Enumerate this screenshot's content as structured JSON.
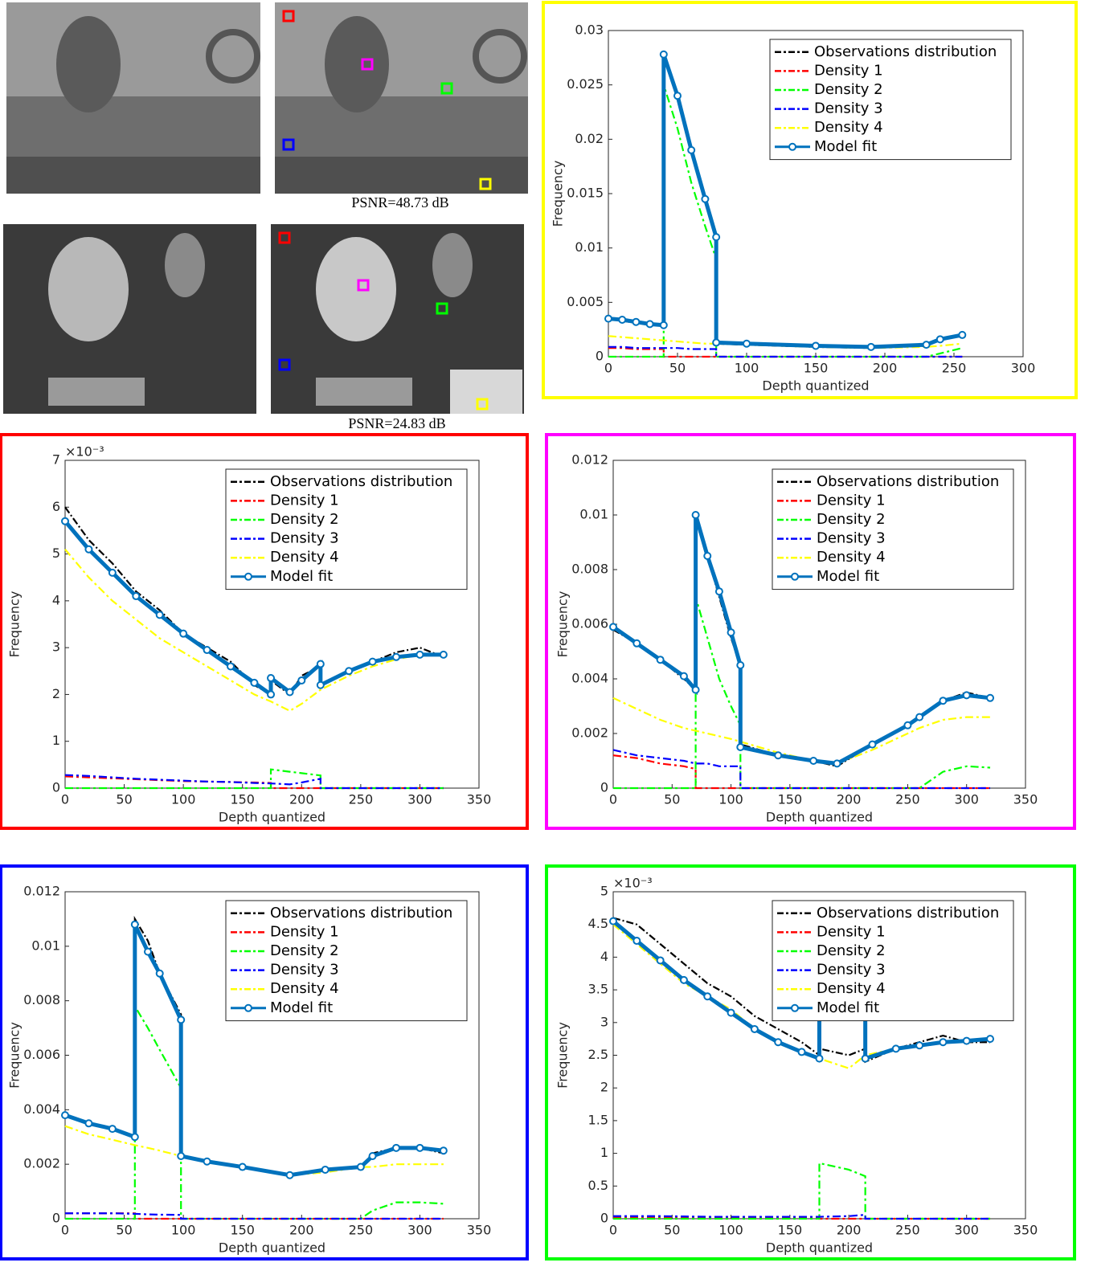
{
  "image_captions": [
    "PSNR=48.73 dB",
    "PSNR=24.83 dB"
  ],
  "chart_data": [
    {
      "type": "line",
      "frame_color": "#ffff00",
      "xlabel": "Depth quantized",
      "ylabel": "Frequency",
      "xlim": [
        0,
        300
      ],
      "xticks": [
        0,
        50,
        100,
        150,
        200,
        250,
        300
      ],
      "ylim": [
        0,
        0.03
      ],
      "yticks": [
        0,
        0.005,
        0.01,
        0.015,
        0.02,
        0.025,
        0.03
      ],
      "x": [
        0,
        10,
        20,
        30,
        40,
        40,
        50,
        60,
        70,
        78,
        78,
        100,
        150,
        190,
        230,
        240,
        256
      ],
      "series": [
        {
          "name": "Observations distribution",
          "color": "#000000",
          "values": [
            0.0035,
            0.0033,
            0.0031,
            0.003,
            0.0029,
            0.028,
            0.024,
            0.019,
            0.0145,
            0.011,
            0.0012,
            0.0011,
            0.0009,
            0.0008,
            0.001,
            0.0016,
            0.002
          ]
        },
        {
          "name": "Density 1",
          "color": "#ff0000",
          "values": [
            0.0008,
            0.0008,
            0.0007,
            0.0007,
            0.0007,
            0,
            0,
            0,
            0,
            0,
            0,
            0,
            0,
            0,
            0,
            0,
            0
          ]
        },
        {
          "name": "Density 2",
          "color": "#00ff00",
          "values": [
            0,
            0,
            0,
            0,
            0,
            0.025,
            0.021,
            0.016,
            0.012,
            0.009,
            0,
            0,
            0,
            0,
            0,
            0.0003,
            0.0008
          ]
        },
        {
          "name": "Density 3",
          "color": "#0000ff",
          "values": [
            0.0009,
            0.0009,
            0.0008,
            0.0008,
            0.0008,
            0.0008,
            0.0008,
            0.0007,
            0.0007,
            0.0007,
            0,
            0,
            0,
            0,
            0,
            0,
            0
          ]
        },
        {
          "name": "Density 4",
          "color": "#ffff00",
          "values": [
            0.0019,
            0.0018,
            0.0017,
            0.0016,
            0.0015,
            0.0015,
            0.0014,
            0.0013,
            0.0012,
            0.0012,
            0.0012,
            0.0011,
            0.0009,
            0.0008,
            0.0009,
            0.001,
            0.0012
          ]
        },
        {
          "name": "Model fit",
          "color": "#0072bd",
          "values": [
            0.0035,
            0.0034,
            0.0032,
            0.003,
            0.0029,
            0.0278,
            0.024,
            0.019,
            0.0145,
            0.011,
            0.0013,
            0.0012,
            0.001,
            0.0009,
            0.0011,
            0.0016,
            0.002
          ]
        }
      ]
    },
    {
      "type": "line",
      "frame_color": "#ff0000",
      "xlabel": "Depth quantized",
      "ylabel": "Frequency",
      "y_exponent_label": "×10⁻³",
      "xlim": [
        0,
        350
      ],
      "xticks": [
        0,
        50,
        100,
        150,
        200,
        250,
        300,
        350
      ],
      "ylim": [
        0,
        7
      ],
      "yticks": [
        0,
        1,
        2,
        3,
        4,
        5,
        6,
        7
      ],
      "x": [
        0,
        20,
        40,
        60,
        80,
        100,
        120,
        140,
        160,
        174,
        174,
        190,
        200,
        216,
        216,
        240,
        260,
        280,
        300,
        320
      ],
      "series": [
        {
          "name": "Observations distribution",
          "color": "#000000",
          "values": [
            6,
            5.3,
            4.8,
            4.2,
            3.8,
            3.3,
            3,
            2.7,
            2.2,
            2,
            2.3,
            2,
            2.4,
            2.6,
            2.2,
            2.5,
            2.7,
            2.9,
            3,
            2.8
          ]
        },
        {
          "name": "Density 1",
          "color": "#ff0000",
          "values": [
            0.25,
            0.23,
            0.21,
            0.19,
            0.17,
            0.15,
            0.14,
            0.13,
            0.12,
            0.11,
            0,
            0,
            0,
            0,
            0,
            0,
            0,
            0,
            0,
            0
          ]
        },
        {
          "name": "Density 2",
          "color": "#00ff00",
          "values": [
            0,
            0,
            0,
            0,
            0,
            0,
            0,
            0,
            0,
            0,
            0.4,
            0.35,
            0.32,
            0.27,
            0,
            0,
            0,
            0,
            0,
            0
          ]
        },
        {
          "name": "Density 3",
          "color": "#0000ff",
          "values": [
            0.28,
            0.26,
            0.23,
            0.2,
            0.18,
            0.16,
            0.14,
            0.13,
            0.11,
            0.1,
            0.1,
            0.08,
            0.12,
            0.2,
            0,
            0,
            0,
            0,
            0,
            0
          ]
        },
        {
          "name": "Density 4",
          "color": "#ffff00",
          "values": [
            5.1,
            4.5,
            4,
            3.6,
            3.2,
            2.9,
            2.6,
            2.3,
            2,
            1.85,
            1.85,
            1.65,
            1.8,
            2.1,
            2.1,
            2.4,
            2.6,
            2.75,
            2.85,
            2.85
          ]
        },
        {
          "name": "Model fit",
          "color": "#0072bd",
          "values": [
            5.7,
            5.1,
            4.6,
            4.1,
            3.7,
            3.3,
            2.95,
            2.6,
            2.25,
            2,
            2.35,
            2.05,
            2.3,
            2.65,
            2.2,
            2.5,
            2.7,
            2.8,
            2.85,
            2.85
          ]
        }
      ]
    },
    {
      "type": "line",
      "frame_color": "#ff00ff",
      "xlabel": "Depth quantized",
      "ylabel": "Frequency",
      "xlim": [
        0,
        350
      ],
      "xticks": [
        0,
        50,
        100,
        150,
        200,
        250,
        300,
        350
      ],
      "ylim": [
        0,
        0.012
      ],
      "yticks": [
        0,
        0.002,
        0.004,
        0.006,
        0.008,
        0.01,
        0.012
      ],
      "x": [
        0,
        20,
        40,
        60,
        70,
        70,
        80,
        90,
        100,
        108,
        108,
        140,
        170,
        190,
        220,
        250,
        260,
        280,
        300,
        320
      ],
      "series": [
        {
          "name": "Observations distribution",
          "color": "#000000",
          "values": [
            0.0058,
            0.0053,
            0.0047,
            0.004,
            0.0036,
            0.0098,
            0.0085,
            0.007,
            0.0055,
            0.0045,
            0.0016,
            0.0012,
            0.001,
            0.0008,
            0.0016,
            0.0023,
            0.0026,
            0.0032,
            0.0035,
            0.0033
          ]
        },
        {
          "name": "Density 1",
          "color": "#ff0000",
          "values": [
            0.0012,
            0.0011,
            0.0009,
            0.0008,
            0.0007,
            0,
            0,
            0,
            0,
            0,
            0,
            0,
            0,
            0,
            0,
            0,
            0,
            0,
            0,
            0
          ]
        },
        {
          "name": "Density 2",
          "color": "#00ff00",
          "values": [
            0,
            0,
            0,
            0,
            0,
            0.007,
            0.0055,
            0.004,
            0.003,
            0.0023,
            0,
            0,
            0,
            0,
            0,
            0,
            0,
            0.0006,
            0.0008,
            0.00075
          ]
        },
        {
          "name": "Density 3",
          "color": "#0000ff",
          "values": [
            0.0014,
            0.0012,
            0.0011,
            0.001,
            0.0009,
            0.0009,
            0.0009,
            0.0008,
            0.0008,
            0.0008,
            0,
            0,
            0,
            0,
            0,
            0,
            0,
            0,
            0,
            0
          ]
        },
        {
          "name": "Density 4",
          "color": "#ffff00",
          "values": [
            0.0033,
            0.0029,
            0.0025,
            0.0022,
            0.0021,
            0.0021,
            0.002,
            0.0019,
            0.0018,
            0.0017,
            0.0017,
            0.0013,
            0.001,
            0.0009,
            0.0014,
            0.002,
            0.0022,
            0.0025,
            0.0026,
            0.0026
          ]
        },
        {
          "name": "Model fit",
          "color": "#0072bd",
          "values": [
            0.0059,
            0.0053,
            0.0047,
            0.0041,
            0.0036,
            0.01,
            0.0085,
            0.0072,
            0.0057,
            0.0045,
            0.0015,
            0.0012,
            0.001,
            0.0009,
            0.0016,
            0.0023,
            0.0026,
            0.0032,
            0.0034,
            0.0033
          ]
        }
      ]
    },
    {
      "type": "line",
      "frame_color": "#0000ff",
      "xlabel": "Depth quantized",
      "ylabel": "Frequency",
      "xlim": [
        0,
        350
      ],
      "xticks": [
        0,
        50,
        100,
        150,
        200,
        250,
        300,
        350
      ],
      "ylim": [
        0,
        0.012
      ],
      "yticks": [
        0,
        0.002,
        0.004,
        0.006,
        0.008,
        0.01,
        0.012
      ],
      "x": [
        0,
        20,
        40,
        59,
        59,
        70,
        80,
        98,
        98,
        120,
        150,
        190,
        220,
        250,
        260,
        280,
        300,
        320
      ],
      "series": [
        {
          "name": "Observations distribution",
          "color": "#000000",
          "values": [
            0.0038,
            0.0035,
            0.0033,
            0.003,
            0.011,
            0.0102,
            0.009,
            0.0075,
            0.0023,
            0.0021,
            0.0019,
            0.0016,
            0.0018,
            0.0019,
            0.0024,
            0.0026,
            0.0026,
            0.0024
          ]
        },
        {
          "name": "Density 1",
          "color": "#ff0000",
          "values": [
            0.0002,
            0.0002,
            0.0002,
            0.0002,
            0,
            0,
            0,
            0,
            0,
            0,
            0,
            0,
            0,
            0,
            0,
            0,
            0,
            0
          ]
        },
        {
          "name": "Density 2",
          "color": "#00ff00",
          "values": [
            0,
            0,
            0,
            0,
            0.0078,
            0.007,
            0.0062,
            0.0048,
            0,
            0,
            0,
            0,
            0,
            0,
            0.0003,
            0.0006,
            0.0006,
            0.00055
          ]
        },
        {
          "name": "Density 3",
          "color": "#0000ff",
          "values": [
            0.0002,
            0.0002,
            0.0002,
            0.00018,
            0.00018,
            0.00016,
            0.00015,
            0.00014,
            0,
            0,
            0,
            0,
            0,
            0,
            0,
            0,
            0,
            0
          ]
        },
        {
          "name": "Density 4",
          "color": "#ffff00",
          "values": [
            0.0034,
            0.0031,
            0.0029,
            0.0027,
            0.0027,
            0.0026,
            0.0025,
            0.0023,
            0.0023,
            0.0021,
            0.0019,
            0.0016,
            0.0017,
            0.0019,
            0.0019,
            0.002,
            0.002,
            0.002
          ]
        },
        {
          "name": "Model fit",
          "color": "#0072bd",
          "values": [
            0.0038,
            0.0035,
            0.0033,
            0.003,
            0.0108,
            0.0098,
            0.009,
            0.0073,
            0.0023,
            0.0021,
            0.0019,
            0.0016,
            0.0018,
            0.0019,
            0.0023,
            0.0026,
            0.0026,
            0.0025
          ]
        }
      ]
    },
    {
      "type": "line",
      "frame_color": "#00ff00",
      "xlabel": "Depth quantized",
      "ylabel": "Frequency",
      "y_exponent_label": "×10⁻³",
      "xlim": [
        0,
        350
      ],
      "xticks": [
        0,
        50,
        100,
        150,
        200,
        250,
        300,
        350
      ],
      "ylim": [
        0,
        5
      ],
      "yticks": [
        0,
        0.5,
        1,
        1.5,
        2,
        2.5,
        3,
        3.5,
        4,
        4.5,
        5
      ],
      "x": [
        0,
        20,
        40,
        60,
        80,
        100,
        120,
        140,
        160,
        175,
        175,
        200,
        214,
        214,
        240,
        260,
        280,
        300,
        320
      ],
      "series": [
        {
          "name": "Observations distribution",
          "color": "#000000",
          "values": [
            4.6,
            4.5,
            4.2,
            3.9,
            3.6,
            3.4,
            3.1,
            2.9,
            2.7,
            2.5,
            2.6,
            2.5,
            2.6,
            2.4,
            2.6,
            2.7,
            2.8,
            2.7,
            2.7
          ]
        },
        {
          "name": "Density 1",
          "color": "#ff0000",
          "values": [
            0.02,
            0.02,
            0.02,
            0.02,
            0.02,
            0.02,
            0.02,
            0.02,
            0.02,
            0.02,
            0,
            0,
            0,
            0,
            0,
            0,
            0,
            0,
            0
          ]
        },
        {
          "name": "Density 2",
          "color": "#00ff00",
          "values": [
            0,
            0,
            0,
            0,
            0,
            0,
            0,
            0,
            0,
            0,
            0.85,
            0.75,
            0.65,
            0,
            0,
            0,
            0,
            0,
            0
          ]
        },
        {
          "name": "Density 3",
          "color": "#0000ff",
          "values": [
            0.04,
            0.04,
            0.04,
            0.035,
            0.03,
            0.03,
            0.03,
            0.03,
            0.03,
            0.03,
            0.03,
            0.04,
            0.06,
            0,
            0,
            0,
            0,
            0,
            0
          ]
        },
        {
          "name": "Density 4",
          "color": "#ffff00",
          "values": [
            4.5,
            4.2,
            3.9,
            3.6,
            3.4,
            3.2,
            2.9,
            2.7,
            2.55,
            2.45,
            2.45,
            2.3,
            2.5,
            2.5,
            2.6,
            2.65,
            2.7,
            2.72,
            2.74
          ]
        },
        {
          "name": "Model fit",
          "color": "#0072bd",
          "values": [
            4.55,
            4.25,
            3.95,
            3.65,
            3.4,
            3.15,
            2.9,
            2.7,
            2.55,
            2.45,
            3.1,
            3.1,
            3.1,
            2.45,
            2.6,
            2.65,
            2.7,
            2.72,
            2.75
          ]
        }
      ]
    }
  ]
}
